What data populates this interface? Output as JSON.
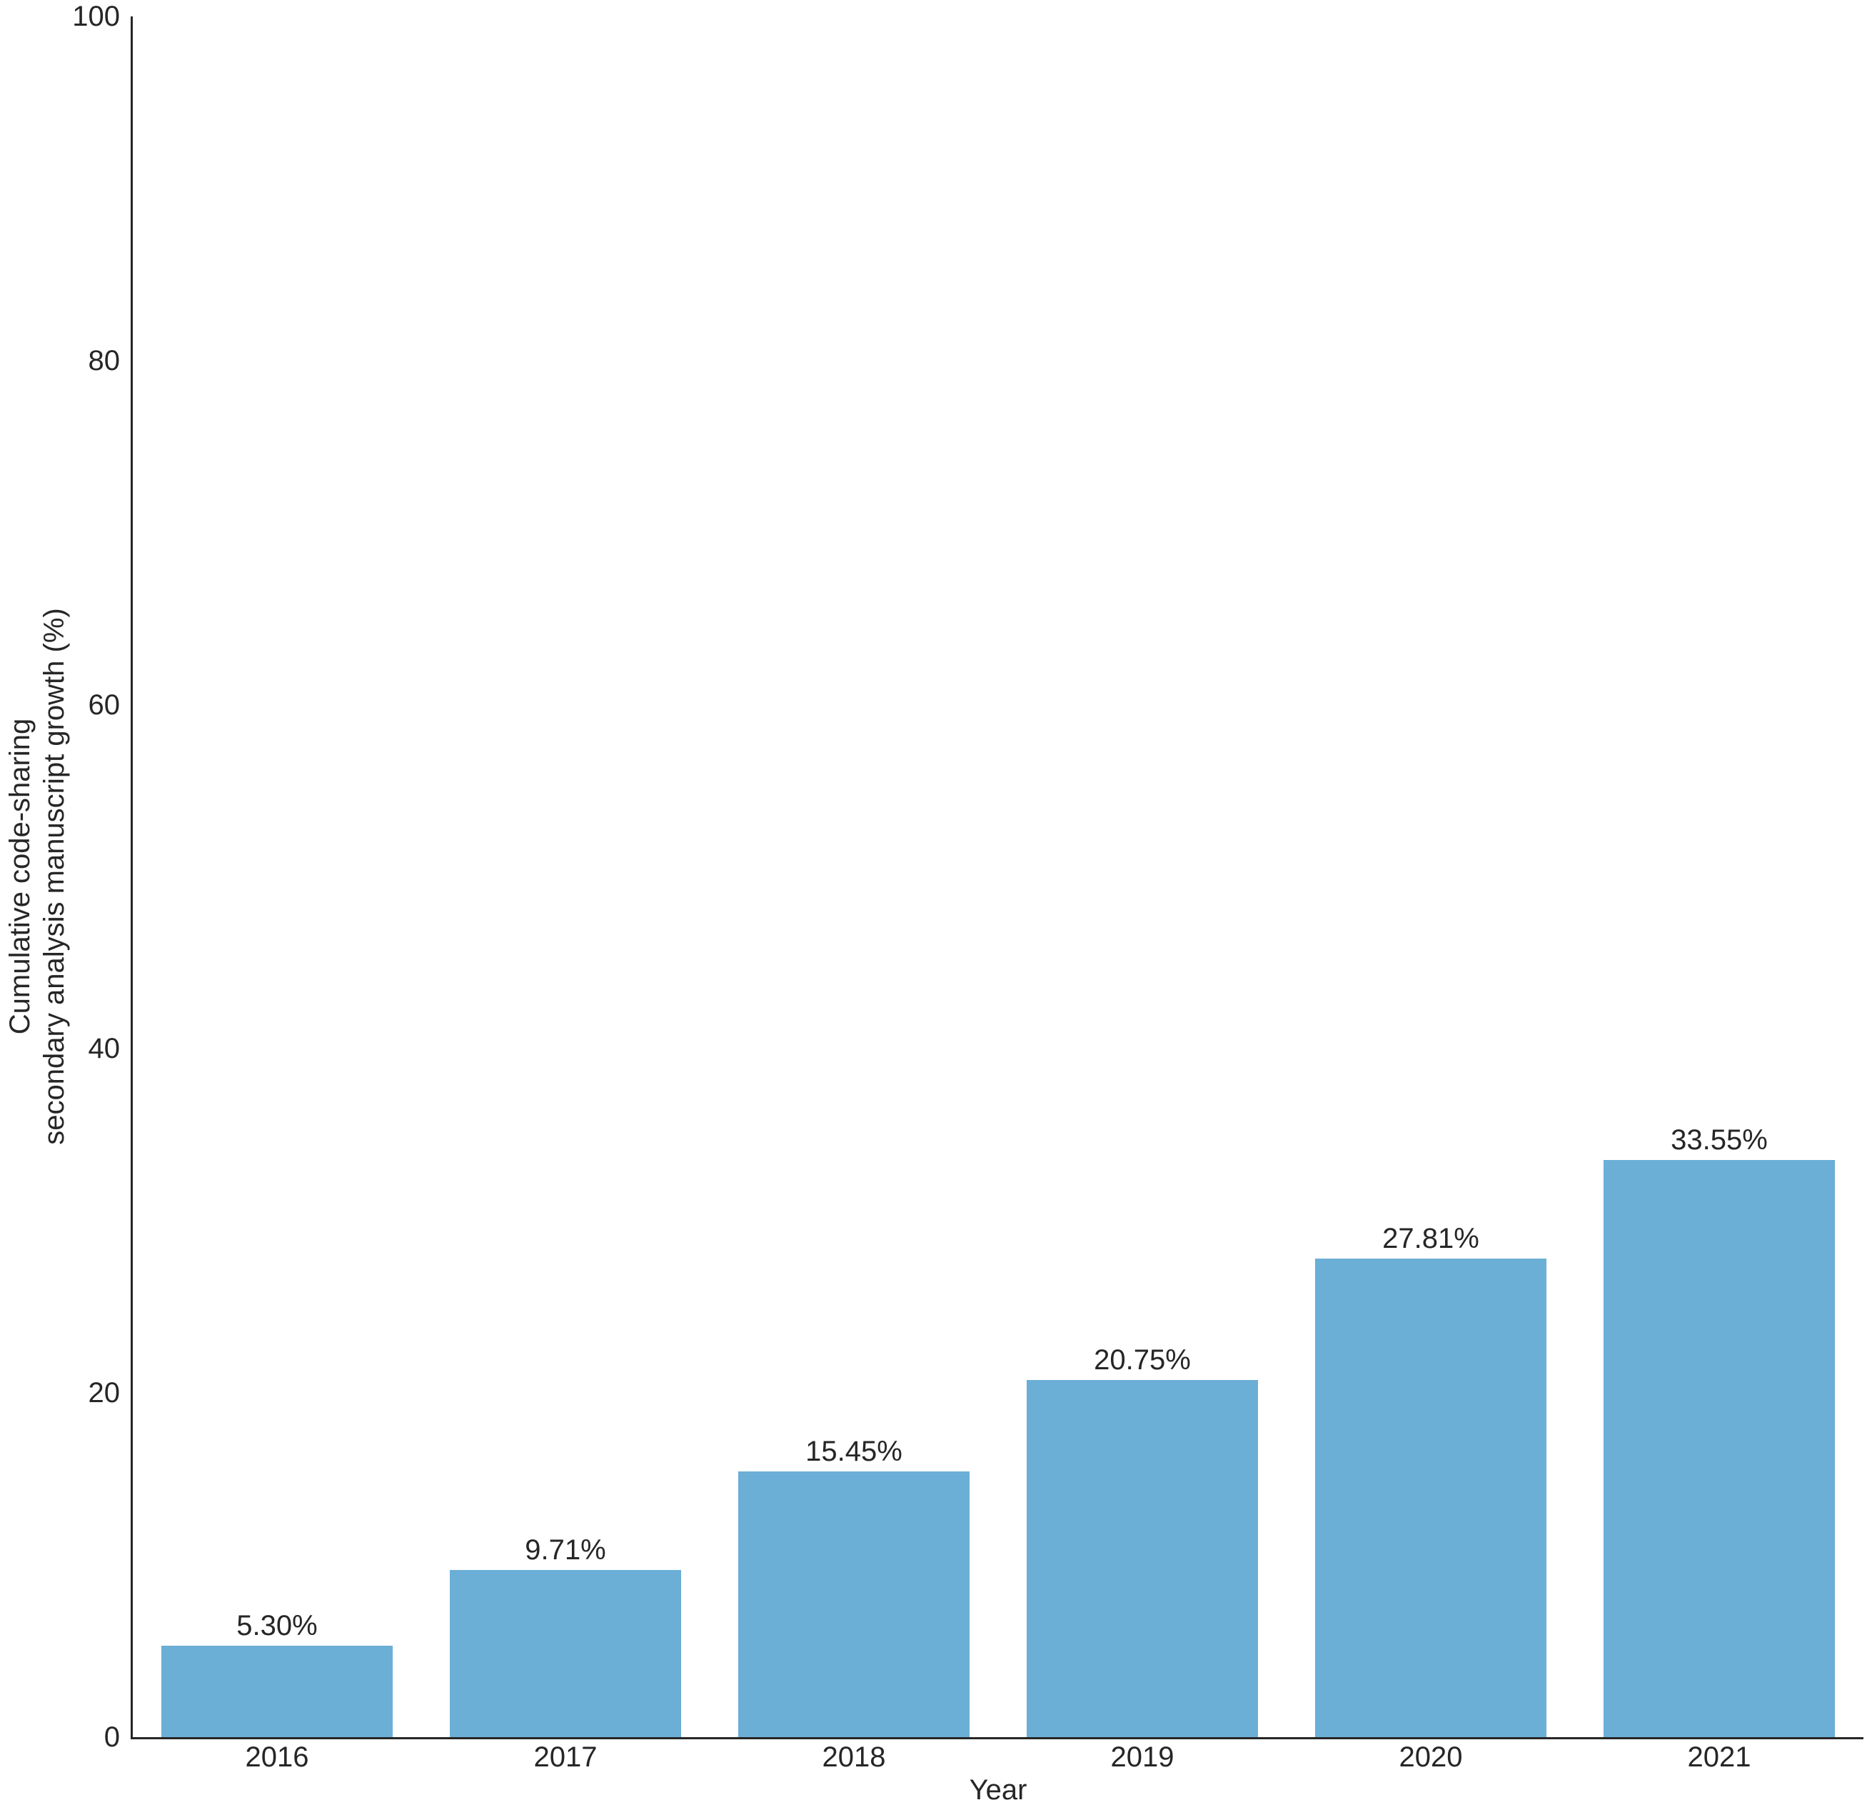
{
  "chart_data": {
    "type": "bar",
    "categories": [
      "2016",
      "2017",
      "2018",
      "2019",
      "2020",
      "2021"
    ],
    "values": [
      5.3,
      9.71,
      15.45,
      20.75,
      27.81,
      33.55
    ],
    "value_labels": [
      "5.30%",
      "9.71%",
      "15.45%",
      "20.75%",
      "27.81%",
      "33.55%"
    ],
    "title": "",
    "xlabel": "Year",
    "ylabel_lines": [
      "Cumulative code-sharing",
      "secondary analysis manuscript growth (%)"
    ],
    "ylim": [
      0,
      100
    ],
    "yticks": [
      0,
      20,
      40,
      60,
      80,
      100
    ],
    "grid": false,
    "legend": null,
    "colors": {
      "bar": "#6baed6",
      "text": "#262626",
      "axis": "#262626",
      "background": "#ffffff"
    }
  }
}
